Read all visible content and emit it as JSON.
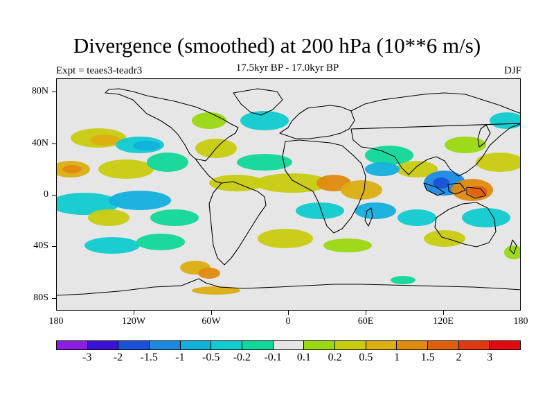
{
  "title": "Divergence (smoothed) at 200 hPa (10**6 m/s)",
  "subtitle": "17.5kyr BP - 17.0kyr BP",
  "experiment": "Expt = teaes3-teadr3",
  "season": "DJF",
  "lat_labels": [
    "80N",
    "40N",
    "0",
    "40S",
    "80S"
  ],
  "lon_labels": [
    "180",
    "120W",
    "60W",
    "0",
    "60E",
    "120E",
    "180"
  ],
  "colorbar": {
    "colors": [
      "#8a1fe0",
      "#3a12d6",
      "#1a50d8",
      "#1a8ae0",
      "#12b0dd",
      "#10cbd0",
      "#10d898",
      "#e6e6e6",
      "#9ad810",
      "#c8cc10",
      "#dcae10",
      "#e08a10",
      "#e06010",
      "#e03810",
      "#e00a10"
    ],
    "labels": [
      "-3",
      "-2",
      "-1.5",
      "-1",
      "-0.5",
      "-0.2",
      "-0.1",
      "0.1",
      "0.2",
      "0.5",
      "1",
      "1.5",
      "2",
      "3"
    ]
  },
  "colors": {
    "background": "#e6e6e6",
    "neg_weak": "#10d898",
    "neg_mid": "#10cbd0",
    "neg_strong": "#12b0dd",
    "neg_stronger": "#1a8ae0",
    "neg_max": "#1a50d8",
    "pos_weak": "#9ad810",
    "pos_mid": "#c8cc10",
    "pos_strong": "#dcae10",
    "pos_stronger": "#e08a10",
    "pos_max": "#e06010"
  }
}
